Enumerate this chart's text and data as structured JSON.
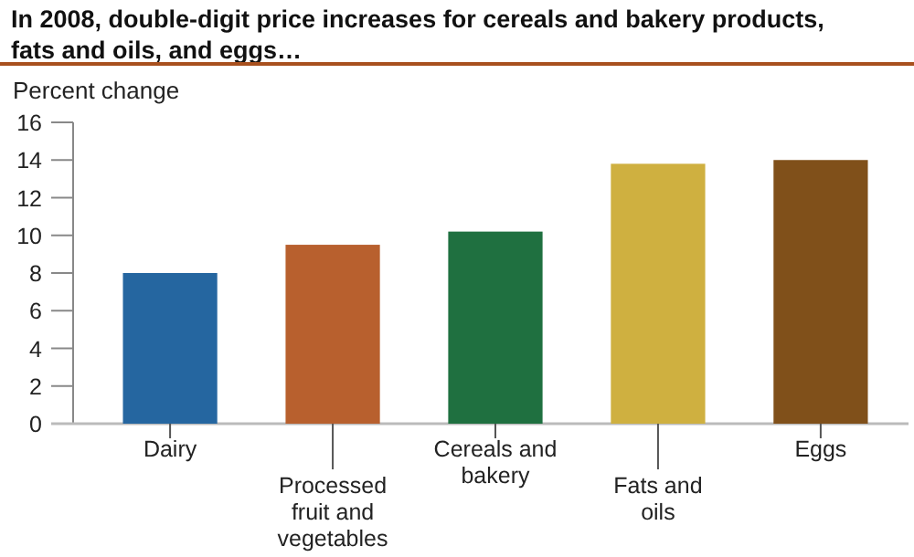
{
  "chart_data": {
    "type": "bar",
    "title": "In 2008, double-digit price increases for cereals and bakery products, fats and oils, and eggs…",
    "ylabel": "Percent change",
    "categories": [
      "Dairy",
      "Processed fruit and vegetables",
      "Cereals and bakery",
      "Fats and oils",
      "Eggs"
    ],
    "values": [
      8.0,
      9.5,
      10.2,
      13.8,
      14.0
    ],
    "colors": [
      "#2566a0",
      "#b8602e",
      "#1f7040",
      "#cfb040",
      "#80501a"
    ],
    "ylim": [
      0,
      16
    ],
    "yticks": [
      0,
      2,
      4,
      6,
      8,
      10,
      12,
      14,
      16
    ],
    "grid": false
  }
}
